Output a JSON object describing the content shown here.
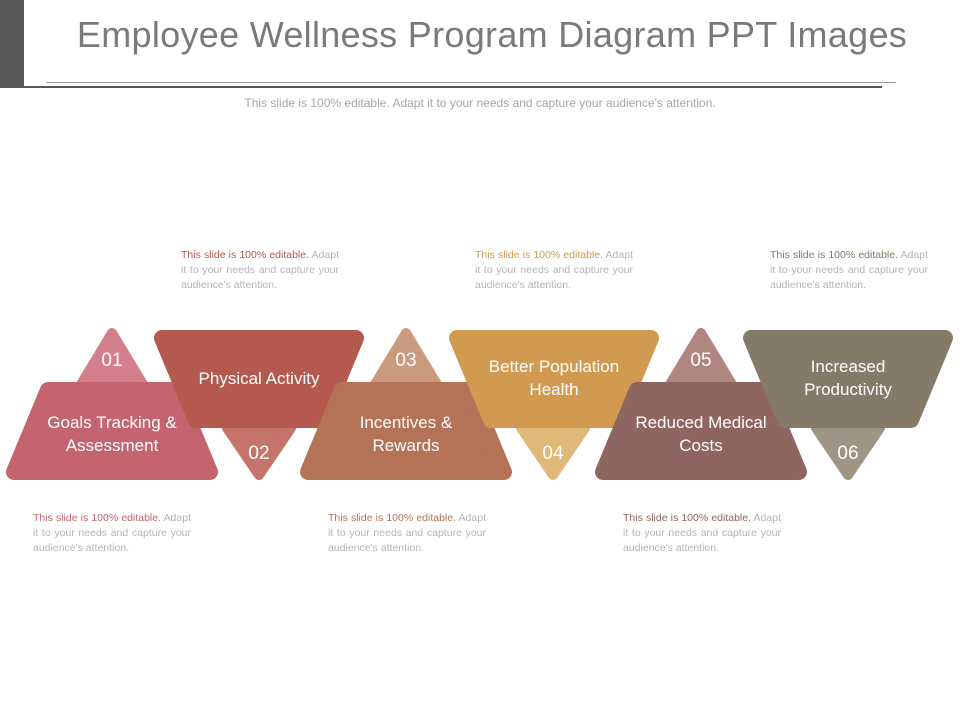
{
  "slide": {
    "title": "Employee Wellness Program Diagram PPT Images",
    "subtitle": "This slide is 100% editable. Adapt it to your needs and capture your audience's attention."
  },
  "desc_text": {
    "lead": "This slide is 100% editable.",
    "rest": " Adapt it to your needs and capture your audience's attention."
  },
  "steps": [
    {
      "number": "01",
      "label": "Goals Tracking & Assessment",
      "color": "#c3646f",
      "number_color": "#d37f8b"
    },
    {
      "number": "02",
      "label": "Physical Activity",
      "color": "#b4594d",
      "number_color": "#c4746a"
    },
    {
      "number": "03",
      "label": "Incentives & Rewards",
      "color": "#b47357",
      "number_color": "#c99a7e"
    },
    {
      "number": "04",
      "label": "Better Population Health",
      "color": "#d09a50",
      "number_color": "#e0b878"
    },
    {
      "number": "05",
      "label": "Reduced Medical Costs",
      "color": "#8f6560",
      "number_color": "#b08680"
    },
    {
      "number": "06",
      "label": "Increased Productivity",
      "color": "#857a68",
      "number_color": "#9e9584"
    }
  ]
}
